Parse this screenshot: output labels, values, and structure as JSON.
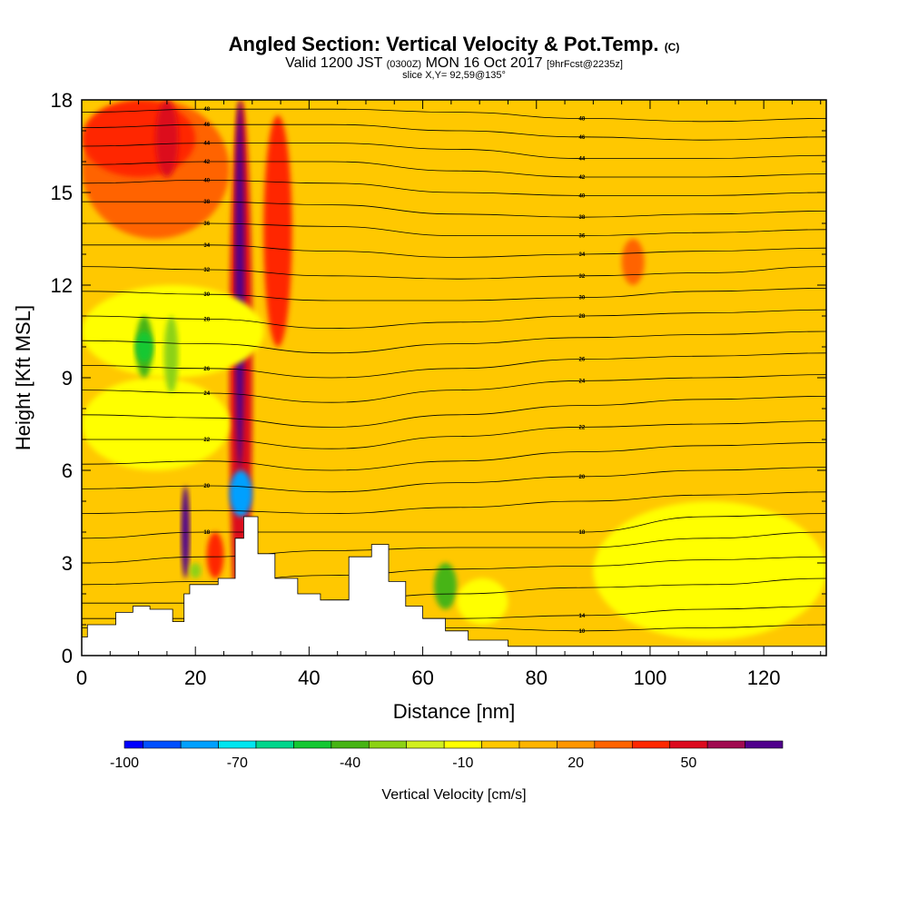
{
  "titles": {
    "main": "Angled Section: Vertical Velocity & Pot.Temp.",
    "main_suffix": "(C)",
    "valid_a": "Valid 1200 JST",
    "valid_b": "(0300Z)",
    "valid_c": "MON 16 Oct 2017",
    "valid_d": "[9hrFcst@2235z]",
    "slice": "slice X,Y= 92,59@135°"
  },
  "chart_data": {
    "type": "heatmap",
    "xlabel": "Distance [nm]",
    "ylabel": "Height [Kft MSL]",
    "xlim": [
      0,
      131
    ],
    "ylim": [
      0,
      18
    ],
    "x_ticks": [
      0,
      20,
      40,
      60,
      80,
      100,
      120
    ],
    "y_ticks": [
      0,
      3,
      6,
      9,
      12,
      15,
      18
    ],
    "background_color": "#ffc800",
    "colorbar": {
      "label": "Vertical Velocity [cm/s]",
      "tick_labels": [
        {
          "value": -100,
          "label": "-100"
        },
        {
          "value": -70,
          "label": "-70"
        },
        {
          "value": -40,
          "label": "-40"
        },
        {
          "value": -10,
          "label": "-10"
        },
        {
          "value": 20,
          "label": "20"
        },
        {
          "value": 50,
          "label": "50"
        }
      ],
      "bins": [
        {
          "from": -100,
          "to": -95,
          "color": "#0000ff"
        },
        {
          "from": -95,
          "to": -85,
          "color": "#0050ff"
        },
        {
          "from": -85,
          "to": -75,
          "color": "#00a0ff"
        },
        {
          "from": -75,
          "to": -65,
          "color": "#00e6f0"
        },
        {
          "from": -65,
          "to": -55,
          "color": "#00d68c"
        },
        {
          "from": -55,
          "to": -45,
          "color": "#14c832"
        },
        {
          "from": -45,
          "to": -35,
          "color": "#46b414"
        },
        {
          "from": -35,
          "to": -25,
          "color": "#8cd214"
        },
        {
          "from": -25,
          "to": -15,
          "color": "#d2f01e"
        },
        {
          "from": -15,
          "to": -5,
          "color": "#ffff00"
        },
        {
          "from": -5,
          "to": 5,
          "color": "#ffc800"
        },
        {
          "from": 5,
          "to": 15,
          "color": "#ffb400"
        },
        {
          "from": 15,
          "to": 25,
          "color": "#ff9600"
        },
        {
          "from": 25,
          "to": 35,
          "color": "#ff6400"
        },
        {
          "from": 35,
          "to": 45,
          "color": "#ff2800"
        },
        {
          "from": 45,
          "to": 55,
          "color": "#dc0a1e"
        },
        {
          "from": 55,
          "to": 65,
          "color": "#a00a50"
        },
        {
          "from": 65,
          "to": 75,
          "color": "#50008c"
        }
      ]
    },
    "velocity_regions": [
      {
        "x0": 0,
        "x1": 26,
        "y0": 13.5,
        "y1": 18,
        "value": 30
      },
      {
        "x0": 0,
        "x1": 20,
        "y0": 15.5,
        "y1": 18,
        "value": 40
      },
      {
        "x0": 13,
        "x1": 17,
        "y0": 15.5,
        "y1": 18,
        "value": 50
      },
      {
        "x0": 26,
        "x1": 30,
        "y0": 0,
        "y1": 18,
        "value": 50
      },
      {
        "x0": 27,
        "x1": 28.6,
        "y0": 6,
        "y1": 18,
        "value": 70
      },
      {
        "x0": 32,
        "x1": 37,
        "y0": 10,
        "y1": 17.5,
        "value": 40
      },
      {
        "x0": 95,
        "x1": 99,
        "y0": 12,
        "y1": 13.5,
        "value": 30
      },
      {
        "x0": 0,
        "x1": 32,
        "y0": 9,
        "y1": 12,
        "value": -10
      },
      {
        "x0": 0,
        "x1": 26,
        "y0": 6,
        "y1": 9,
        "value": -10
      },
      {
        "x0": 9.5,
        "x1": 12.5,
        "y0": 9,
        "y1": 11,
        "value": -40
      },
      {
        "x0": 14.5,
        "x1": 17,
        "y0": 8.5,
        "y1": 11,
        "value": -30
      },
      {
        "x0": 9.5,
        "x1": 12.5,
        "y0": 9.5,
        "y1": 10.5,
        "value": -50
      },
      {
        "x0": 26,
        "x1": 30,
        "y0": 4.5,
        "y1": 6,
        "value": -80
      },
      {
        "x0": 17.5,
        "x1": 19,
        "y0": 2.5,
        "y1": 5.5,
        "value": 70
      },
      {
        "x0": 22,
        "x1": 25,
        "y0": 2.5,
        "y1": 4,
        "value": 40
      },
      {
        "x0": 19,
        "x1": 21,
        "y0": 2.5,
        "y1": 3,
        "value": -30
      },
      {
        "x0": 62,
        "x1": 66,
        "y0": 1.5,
        "y1": 3,
        "value": -40
      },
      {
        "x0": 66,
        "x1": 75,
        "y0": 1,
        "y1": 2.5,
        "value": -10
      },
      {
        "x0": 90,
        "x1": 131,
        "y0": 0.5,
        "y1": 5,
        "value": -10
      }
    ],
    "contours": [
      {
        "label": "10",
        "y": [
          0.9,
          0.9,
          0.9,
          0.9,
          0.8,
          0.9,
          1.0
        ]
      },
      {
        "label": "14",
        "y": [
          1.2,
          1.2,
          1.2,
          1.2,
          1.3,
          1.5,
          1.6
        ]
      },
      {
        "label": "",
        "y": [
          1.7,
          1.7,
          1.8,
          2.0,
          2.2,
          2.3,
          2.5
        ]
      },
      {
        "label": "",
        "y": [
          2.3,
          2.4,
          2.6,
          2.8,
          2.9,
          3.1,
          3.2
        ]
      },
      {
        "label": "",
        "y": [
          3.0,
          3.2,
          3.4,
          3.5,
          3.5,
          3.8,
          4.0
        ]
      },
      {
        "label": "18",
        "y": [
          3.8,
          4.0,
          4.0,
          4.0,
          4.0,
          4.5,
          4.6
        ]
      },
      {
        "label": "",
        "y": [
          4.6,
          4.7,
          4.6,
          4.8,
          5.0,
          5.2,
          5.3
        ]
      },
      {
        "label": "20",
        "y": [
          5.4,
          5.5,
          5.3,
          5.6,
          5.8,
          6.0,
          6.1
        ]
      },
      {
        "label": "",
        "y": [
          6.2,
          6.3,
          6.0,
          6.3,
          6.6,
          6.8,
          6.9
        ]
      },
      {
        "label": "22",
        "y": [
          7.0,
          7.0,
          6.7,
          7.1,
          7.4,
          7.5,
          7.6
        ]
      },
      {
        "label": "",
        "y": [
          7.8,
          7.7,
          7.4,
          7.8,
          8.1,
          8.3,
          8.4
        ]
      },
      {
        "label": "24",
        "y": [
          8.6,
          8.5,
          8.2,
          8.6,
          8.9,
          9.0,
          9.1
        ]
      },
      {
        "label": "26",
        "y": [
          9.4,
          9.3,
          9.0,
          9.3,
          9.6,
          9.7,
          9.8
        ]
      },
      {
        "label": "",
        "y": [
          10.2,
          10.1,
          9.8,
          10.1,
          10.3,
          10.4,
          10.5
        ]
      },
      {
        "label": "28",
        "y": [
          11.0,
          10.9,
          10.6,
          10.8,
          11.0,
          11.1,
          11.2
        ]
      },
      {
        "label": "30",
        "y": [
          11.8,
          11.7,
          11.5,
          11.5,
          11.6,
          11.8,
          11.9
        ]
      },
      {
        "label": "32",
        "y": [
          12.6,
          12.5,
          12.3,
          12.2,
          12.3,
          12.4,
          12.6
        ]
      },
      {
        "label": "34",
        "y": [
          13.3,
          13.3,
          13.1,
          12.9,
          13.0,
          13.1,
          13.2
        ]
      },
      {
        "label": "36",
        "y": [
          14.0,
          14.0,
          13.9,
          13.6,
          13.6,
          13.7,
          13.8
        ]
      },
      {
        "label": "38",
        "y": [
          14.7,
          14.7,
          14.6,
          14.3,
          14.2,
          14.3,
          14.4
        ]
      },
      {
        "label": "40",
        "y": [
          15.3,
          15.4,
          15.3,
          15.0,
          14.9,
          14.9,
          15.0
        ]
      },
      {
        "label": "42",
        "y": [
          15.9,
          16.0,
          16.0,
          15.7,
          15.5,
          15.5,
          15.6
        ]
      },
      {
        "label": "44",
        "y": [
          16.5,
          16.6,
          16.6,
          16.4,
          16.1,
          16.1,
          16.2
        ]
      },
      {
        "label": "46",
        "y": [
          17.1,
          17.2,
          17.2,
          17.0,
          16.8,
          16.7,
          16.8
        ]
      },
      {
        "label": "48",
        "y": [
          17.6,
          17.7,
          17.7,
          17.6,
          17.4,
          17.3,
          17.4
        ]
      }
    ],
    "contour_x": [
      0,
      22,
      44,
      66,
      88,
      110,
      131
    ],
    "terrain": {
      "x": [
        0,
        1,
        1,
        6,
        6,
        9,
        9,
        12,
        12,
        16,
        16,
        18,
        18,
        19,
        19,
        24,
        24,
        27,
        27,
        28.5,
        28.5,
        31,
        31,
        34,
        34,
        38,
        38,
        42,
        42,
        47,
        47,
        51,
        51,
        54,
        54,
        57,
        57,
        60,
        60,
        64,
        64,
        68,
        68,
        75,
        75,
        131
      ],
      "y": [
        0.6,
        0.6,
        1.0,
        1.0,
        1.4,
        1.4,
        1.6,
        1.6,
        1.5,
        1.5,
        1.1,
        1.1,
        2.0,
        2.0,
        2.3,
        2.3,
        2.5,
        2.5,
        3.8,
        3.8,
        4.5,
        4.5,
        3.3,
        3.3,
        2.5,
        2.5,
        2.0,
        2.0,
        1.8,
        1.8,
        3.2,
        3.2,
        3.6,
        3.6,
        2.4,
        2.4,
        1.6,
        1.6,
        1.2,
        1.2,
        0.8,
        0.8,
        0.5,
        0.5,
        0.3,
        0.3
      ]
    }
  }
}
